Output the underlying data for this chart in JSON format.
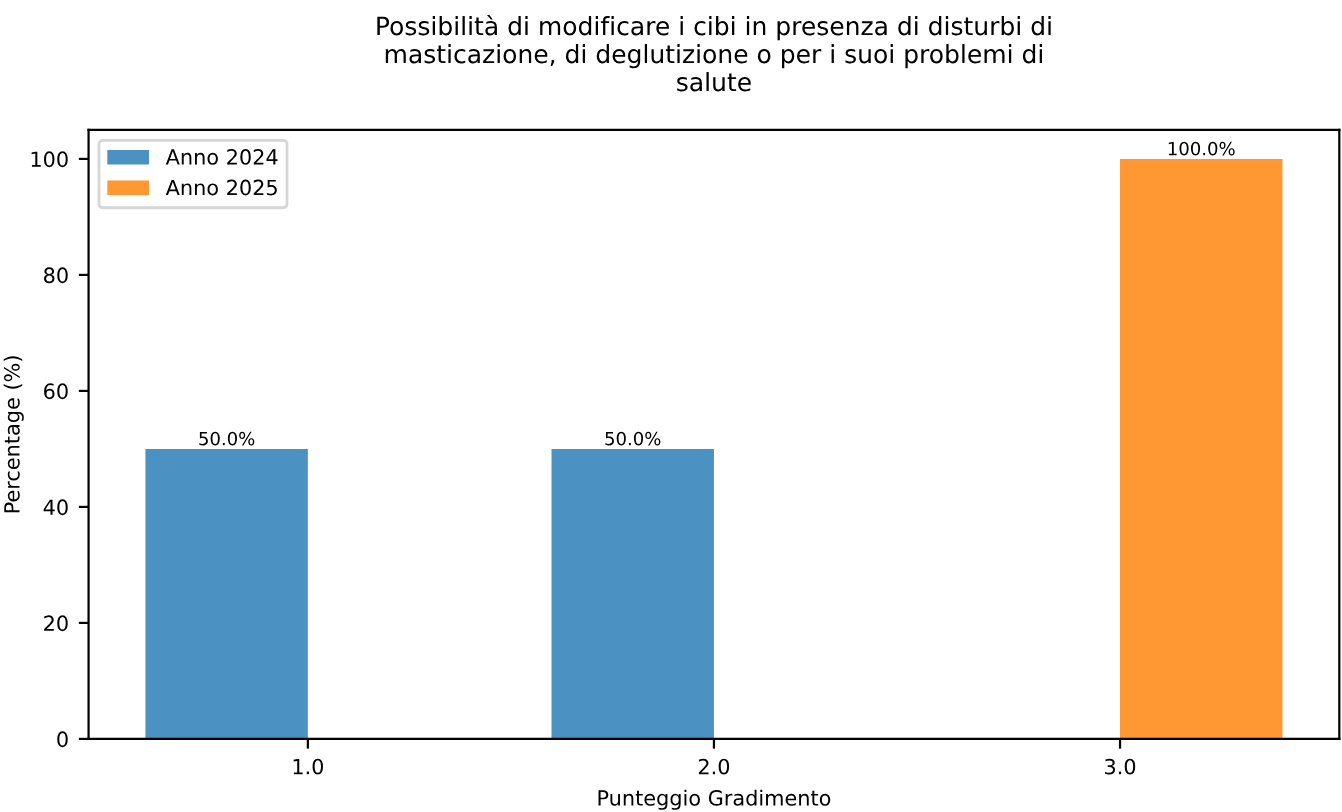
{
  "chart_data": {
    "type": "bar",
    "title": "Possibilità di modificare i cibi in presenza di disturbi di\nmasticazione, di deglutizione o per i suoi problemi di\nsalute",
    "xlabel": "Punteggio Gradimento",
    "ylabel": "Percentage (%)",
    "categories": [
      "1.0",
      "2.0",
      "3.0"
    ],
    "series": [
      {
        "name": "Anno 2024",
        "color": "#4b92c3",
        "values": [
          50.0,
          50.0,
          null
        ],
        "value_labels": [
          "50.0%",
          "50.0%",
          null
        ]
      },
      {
        "name": "Anno 2025",
        "color": "#ff9833",
        "values": [
          null,
          null,
          100.0
        ],
        "value_labels": [
          null,
          null,
          "100.0%"
        ]
      }
    ],
    "ylim": [
      0,
      105
    ],
    "yticks": [
      0,
      20,
      40,
      60,
      80,
      100
    ],
    "legend": "top left",
    "grid": false
  }
}
